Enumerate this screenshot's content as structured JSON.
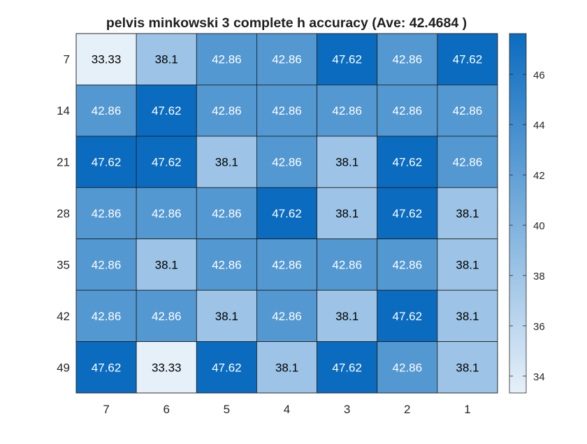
{
  "chart_data": {
    "type": "heatmap",
    "title": "pelvis minkowski 3 complete h accuracy (Ave:  42.4684 )",
    "xlabel": "",
    "ylabel": "",
    "x_categories": [
      "7",
      "6",
      "5",
      "4",
      "3",
      "2",
      "1"
    ],
    "y_categories": [
      "7",
      "14",
      "21",
      "28",
      "35",
      "42",
      "49"
    ],
    "values": [
      [
        33.33,
        38.1,
        42.86,
        42.86,
        47.62,
        42.86,
        47.62
      ],
      [
        42.86,
        47.62,
        42.86,
        42.86,
        42.86,
        42.86,
        42.86
      ],
      [
        47.62,
        47.62,
        38.1,
        42.86,
        38.1,
        47.62,
        42.86
      ],
      [
        42.86,
        42.86,
        42.86,
        47.62,
        38.1,
        47.62,
        38.1
      ],
      [
        42.86,
        38.1,
        42.86,
        42.86,
        42.86,
        42.86,
        38.1
      ],
      [
        42.86,
        42.86,
        38.1,
        42.86,
        38.1,
        47.62,
        38.1
      ],
      [
        47.62,
        33.33,
        47.62,
        38.1,
        47.62,
        42.86,
        38.1
      ]
    ],
    "value_labels": [
      [
        "33.33",
        "38.1",
        "42.86",
        "42.86",
        "47.62",
        "42.86",
        "47.62"
      ],
      [
        "42.86",
        "47.62",
        "42.86",
        "42.86",
        "42.86",
        "42.86",
        "42.86"
      ],
      [
        "47.62",
        "47.62",
        "38.1",
        "42.86",
        "38.1",
        "47.62",
        "42.86"
      ],
      [
        "42.86",
        "42.86",
        "42.86",
        "47.62",
        "38.1",
        "47.62",
        "38.1"
      ],
      [
        "42.86",
        "38.1",
        "42.86",
        "42.86",
        "42.86",
        "42.86",
        "38.1"
      ],
      [
        "42.86",
        "42.86",
        "38.1",
        "42.86",
        "38.1",
        "47.62",
        "38.1"
      ],
      [
        "47.62",
        "33.33",
        "47.62",
        "38.1",
        "47.62",
        "42.86",
        "38.1"
      ]
    ],
    "color_range": [
      33.33,
      47.62
    ],
    "colormap": {
      "low": "#e6f0f9",
      "high": "#0b6cbf"
    },
    "colorbar": {
      "ticks": [
        34,
        36,
        38,
        40,
        42,
        44,
        46
      ],
      "tick_labels": [
        "34",
        "36",
        "38",
        "40",
        "42",
        "44",
        "46"
      ],
      "placement": "right"
    },
    "grid": true,
    "label_colors": {
      "dark": "#000000",
      "light": "#ffffff"
    }
  }
}
